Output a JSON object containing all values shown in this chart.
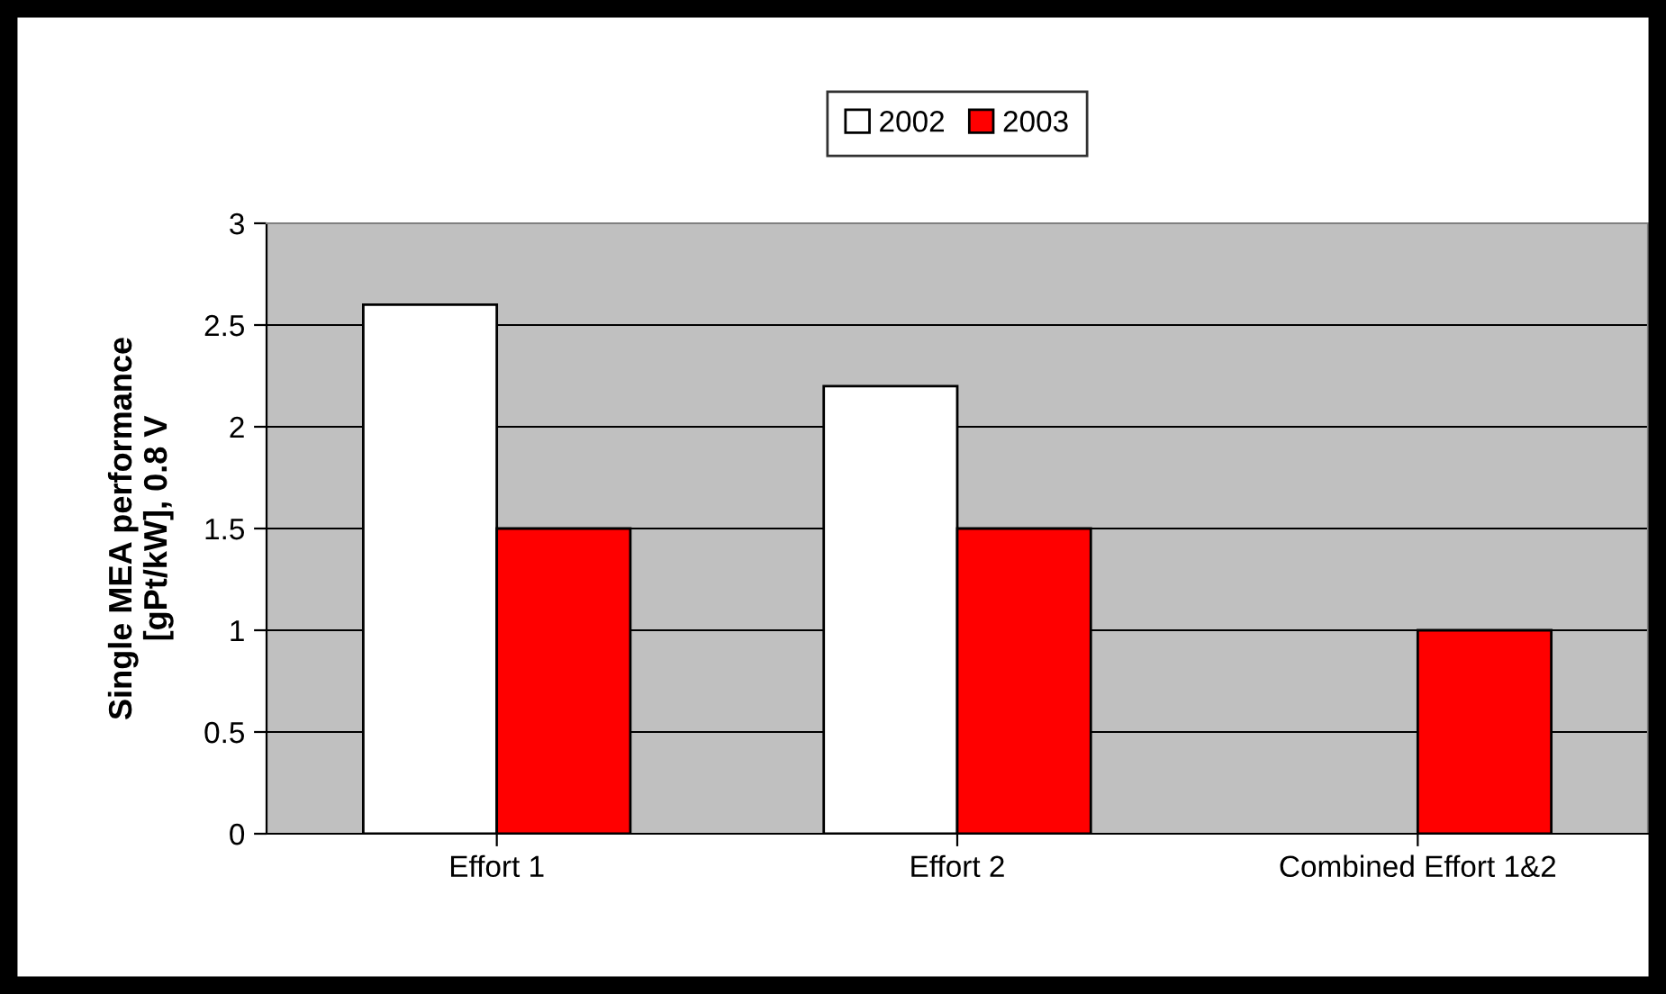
{
  "chart_data": {
    "type": "bar",
    "ylabel": "Single MEA performance\n[gPt/kW], 0.8 V",
    "categories": [
      "Effort 1",
      "Effort 2",
      "Combined Effort 1&2"
    ],
    "series": [
      {
        "name": "2002",
        "color": "#ffffff",
        "values": [
          2.6,
          2.2,
          null
        ]
      },
      {
        "name": "2003",
        "color": "#ff0000",
        "values": [
          1.5,
          1.5,
          1.0
        ]
      }
    ],
    "ylim": [
      0,
      3
    ],
    "yticks": [
      0,
      0.5,
      1,
      1.5,
      2,
      2.5,
      3
    ],
    "grid": "y",
    "legend": "top"
  }
}
